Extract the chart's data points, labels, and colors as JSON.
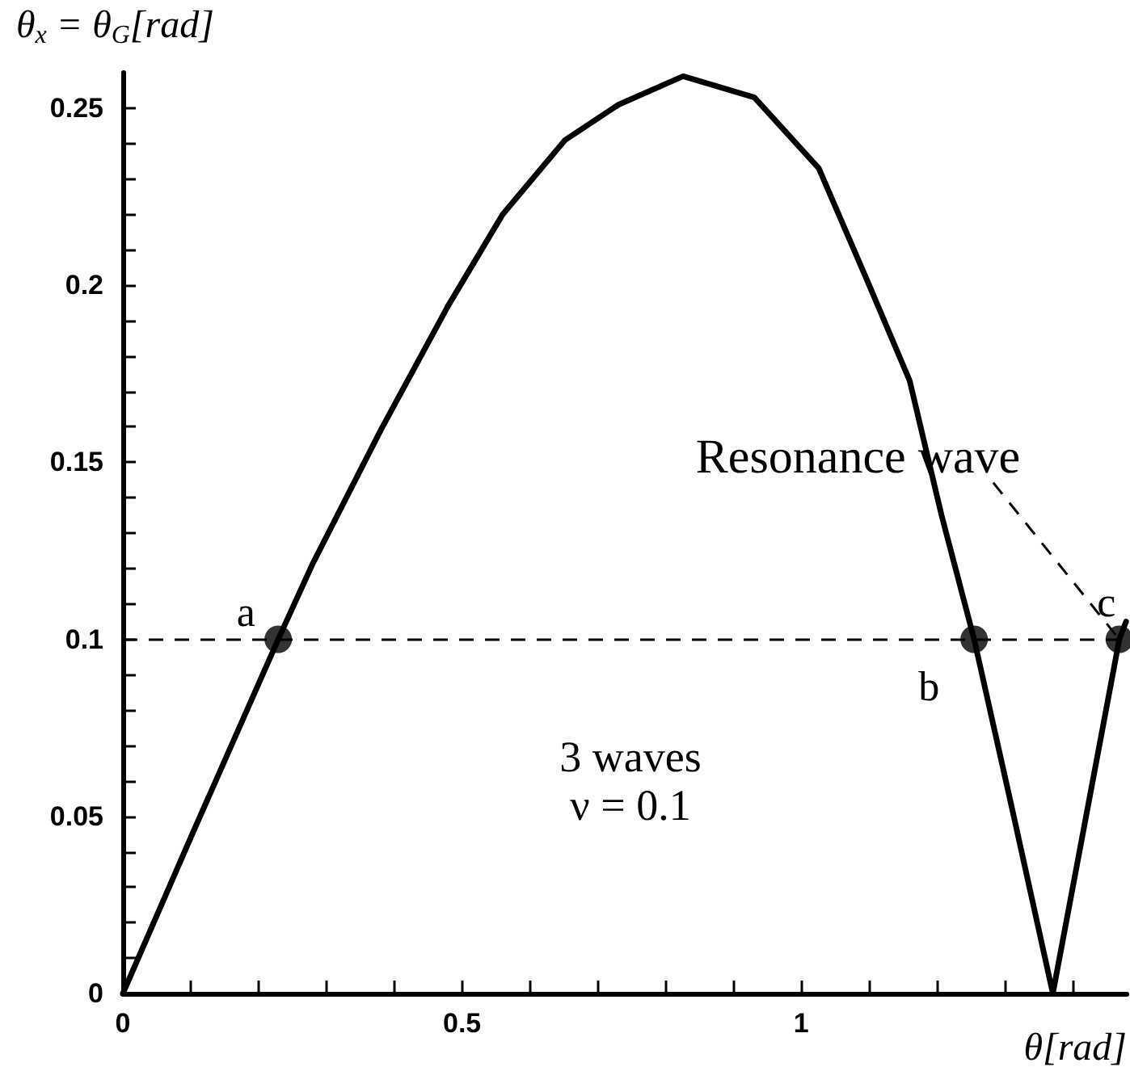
{
  "chart_data": {
    "type": "line",
    "xlabel": "θ[rad]",
    "ylabel": "θ$_{x}$ = θ$_{G}$[rad]",
    "series": [
      {
        "type": "line",
        "color": "#000000",
        "marker": "none",
        "line_style": "solid",
        "x": [
          0,
          0.1,
          0.229,
          0.279,
          0.38,
          0.479,
          0.56,
          0.652,
          0.731,
          0.826,
          0.931,
          1.026,
          1.098,
          1.16,
          1.207,
          1.255,
          1.31,
          1.371,
          1.42,
          1.469,
          1.479
        ],
        "values": [
          0,
          0.044,
          0.1,
          0.121,
          0.159,
          0.194,
          0.22,
          0.241,
          0.251,
          0.259,
          0.253,
          0.233,
          0.201,
          0.173,
          0.135,
          0.1,
          0.053,
          0,
          0.05,
          0.1,
          0.105
        ]
      },
      {
        "type": "scatter",
        "color": "#000000",
        "marker": "circle",
        "x": [
          0.229,
          1.255,
          1.469
        ],
        "values": [
          0.1,
          0.1,
          0.1
        ]
      }
    ],
    "ref_lines": [
      {
        "axis": "y",
        "value": 0.1,
        "line_style": "dashed",
        "color": "#000000"
      }
    ],
    "annotations": [
      {
        "text": "a",
        "x": 0.229,
        "y": 0.1
      },
      {
        "text": "b",
        "x": 1.255,
        "y": 0.1
      },
      {
        "text": "c",
        "x": 1.469,
        "y": 0.1
      },
      {
        "text": "Resonance wave",
        "x": 1.469,
        "y": 0.1
      },
      "3 waves\nν = 0.1"
    ],
    "xlim": [
      0,
      1.48
    ],
    "ylim": [
      0,
      0.26
    ],
    "xticks": [
      0,
      {
        "value": 0.1,
        "label": null
      },
      {
        "value": 0.2,
        "label": null
      },
      {
        "value": 0.3,
        "label": null
      },
      {
        "value": 0.4,
        "label": null
      },
      0.5,
      {
        "value": 0.6,
        "label": null
      },
      {
        "value": 0.7,
        "label": null
      },
      {
        "value": 0.8,
        "label": null
      },
      {
        "value": 0.9,
        "label": null
      },
      1,
      {
        "value": 1.1,
        "label": null
      },
      {
        "value": 1.2,
        "label": null
      },
      {
        "value": 1.3,
        "label": null
      },
      {
        "value": 1.4,
        "label": null
      }
    ],
    "yticks": [
      0,
      {
        "value": 0.01,
        "label": null
      },
      {
        "value": 0.02,
        "label": null
      },
      {
        "value": 0.03,
        "label": null
      },
      {
        "value": 0.04,
        "label": null
      },
      0.05,
      {
        "value": 0.06,
        "label": null
      },
      {
        "value": 0.07,
        "label": null
      },
      {
        "value": 0.08,
        "label": null
      },
      {
        "value": 0.09,
        "label": null
      },
      0.1,
      {
        "value": 0.11,
        "label": null
      },
      {
        "value": 0.12,
        "label": null
      },
      {
        "value": 0.13,
        "label": null
      },
      {
        "value": 0.14,
        "label": null
      },
      0.15,
      {
        "value": 0.16,
        "label": null
      },
      {
        "value": 0.17,
        "label": null
      },
      {
        "value": 0.18,
        "label": null
      },
      {
        "value": 0.19,
        "label": null
      },
      0.2,
      {
        "value": 0.21,
        "label": null
      },
      {
        "value": 0.22,
        "label": null
      },
      {
        "value": 0.23,
        "label": null
      },
      {
        "value": 0.24,
        "label": null
      },
      0.25
    ],
    "grid": false
  }
}
